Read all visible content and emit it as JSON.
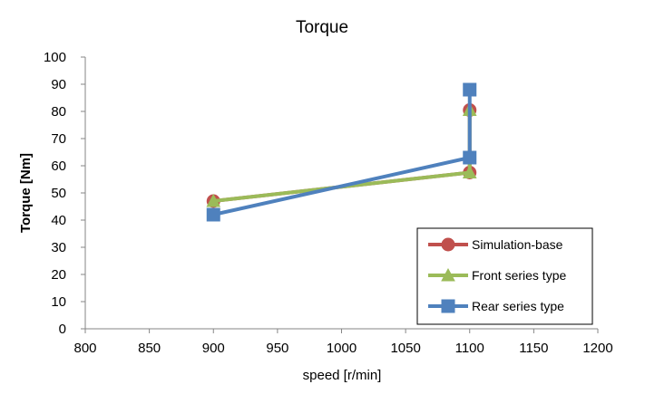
{
  "chart_data": {
    "type": "line",
    "title": "Torque",
    "xlabel": "speed [r/min]",
    "ylabel": "Torque [Nm]",
    "xlim": [
      800,
      1200
    ],
    "ylim": [
      0,
      100
    ],
    "xticks": [
      800,
      850,
      900,
      950,
      1000,
      1050,
      1100,
      1150,
      1200
    ],
    "yticks": [
      0,
      10,
      20,
      30,
      40,
      50,
      60,
      70,
      80,
      90,
      100
    ],
    "grid": false,
    "legend_position": "bottom-right",
    "series": [
      {
        "name": "Simulation-base",
        "color": "#C0504D",
        "marker": "circle",
        "points": [
          {
            "x": 900,
            "y": 47
          },
          {
            "x": 1100,
            "y": 57.5
          },
          {
            "x": 1100,
            "y": 80.5
          }
        ]
      },
      {
        "name": "Front series type",
        "color": "#9BBB59",
        "marker": "triangle",
        "points": [
          {
            "x": 900,
            "y": 47
          },
          {
            "x": 1100,
            "y": 57.5
          },
          {
            "x": 1100,
            "y": 80.5
          }
        ]
      },
      {
        "name": "Rear series type",
        "color": "#4F81BD",
        "marker": "square",
        "points": [
          {
            "x": 900,
            "y": 42
          },
          {
            "x": 1100,
            "y": 63
          },
          {
            "x": 1100,
            "y": 88
          }
        ]
      }
    ]
  }
}
